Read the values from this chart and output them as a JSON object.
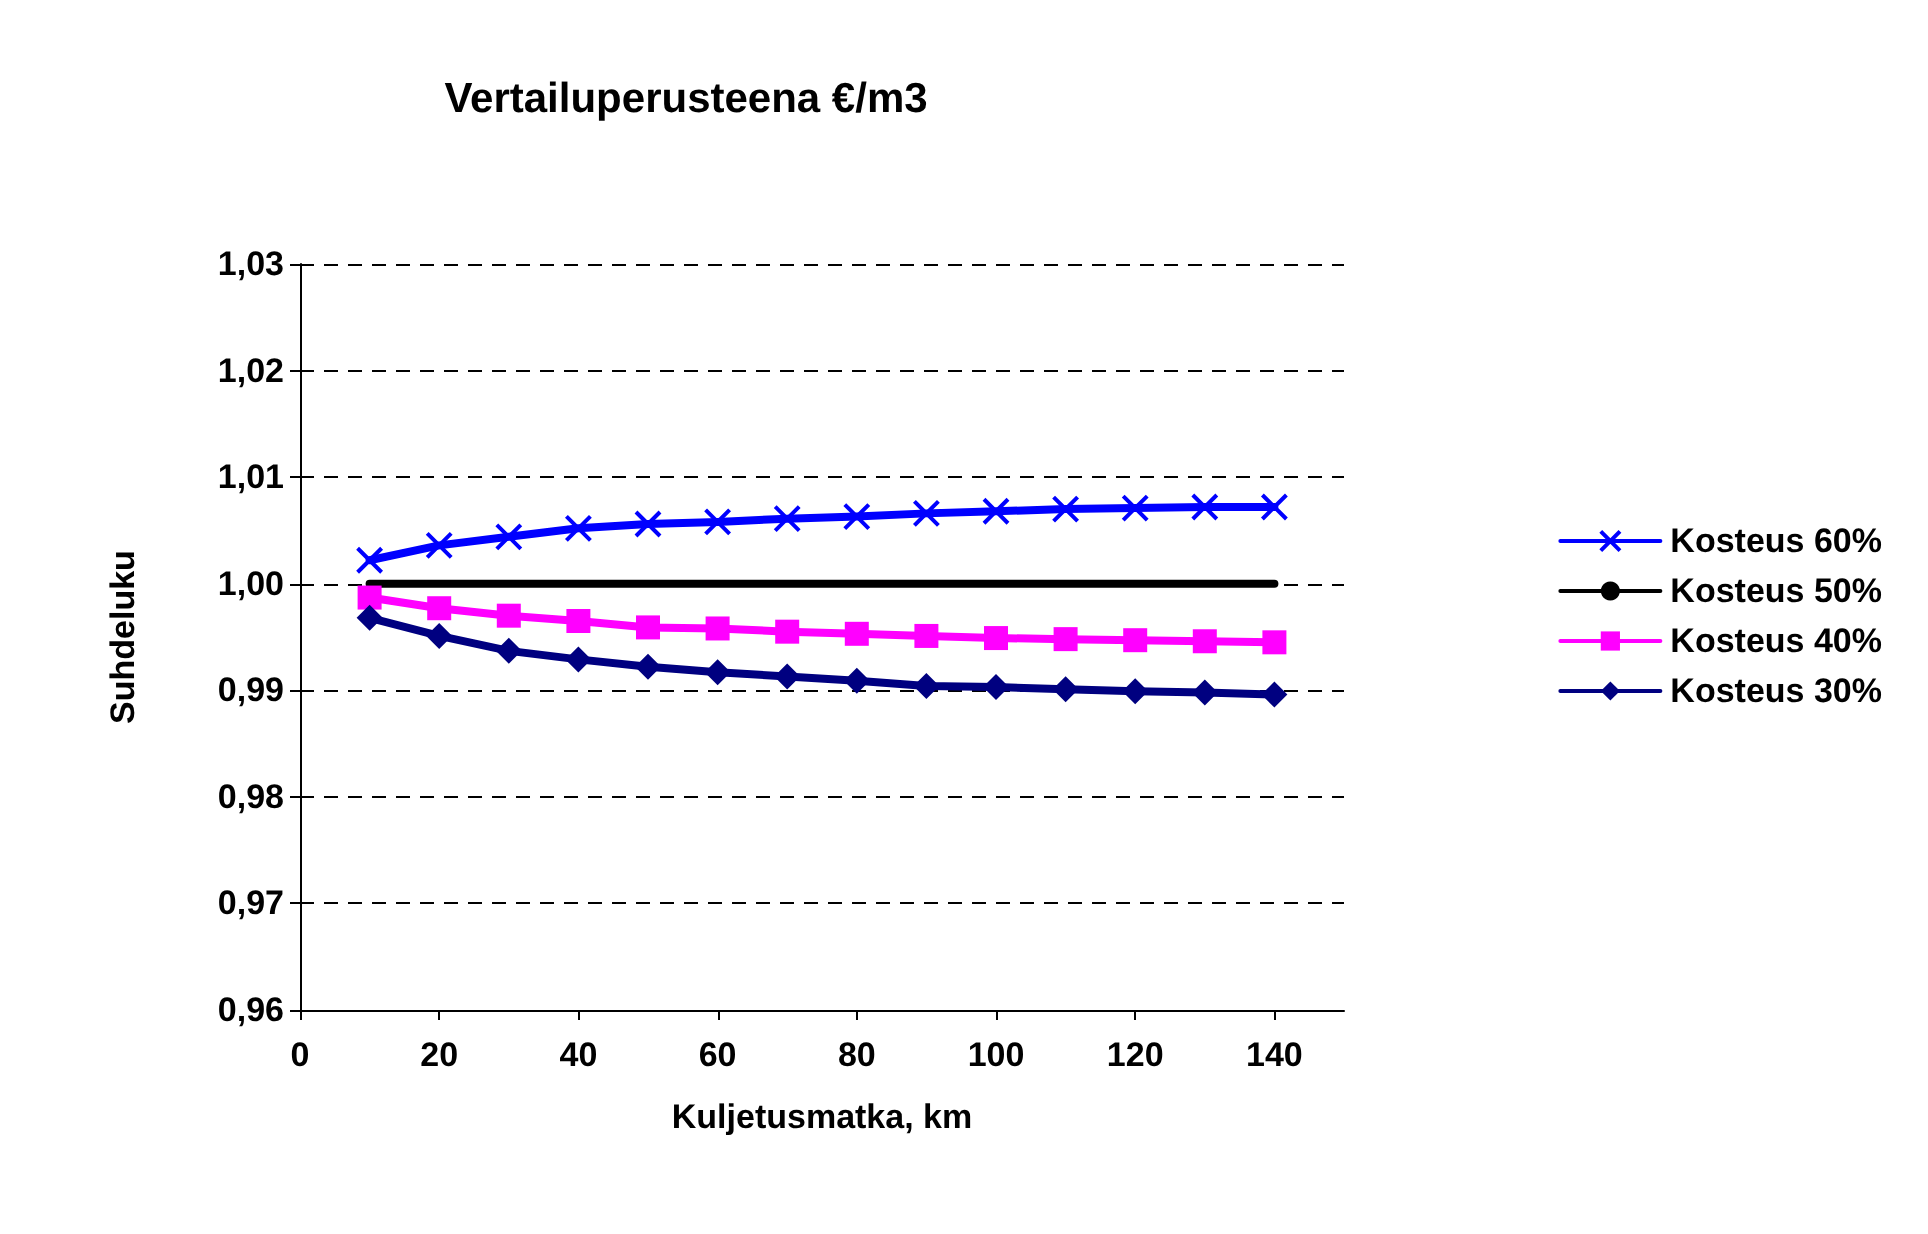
{
  "chart_data": {
    "type": "line",
    "title": "Vertailuperusteena €/m3",
    "xlabel": "Kuljetusmatka, km",
    "ylabel": "Suhdeluku",
    "x": [
      10,
      20,
      30,
      40,
      50,
      60,
      70,
      80,
      90,
      100,
      110,
      120,
      130,
      140
    ],
    "series": [
      {
        "name": "Kosteus 60%",
        "color": "#0000ff",
        "marker": "cross",
        "values": [
          1.0022,
          1.0036,
          1.0044,
          1.0052,
          1.0056,
          1.0058,
          1.0061,
          1.0063,
          1.0066,
          1.0068,
          1.007,
          1.0071,
          1.0072,
          1.0072
        ]
      },
      {
        "name": "Kosteus 50%",
        "color": "#000000",
        "marker": "none",
        "values": [
          1,
          1,
          1,
          1,
          1,
          1,
          1,
          1,
          1,
          1,
          1,
          1,
          1,
          1
        ]
      },
      {
        "name": "Kosteus 40%",
        "color": "#ff00ff",
        "marker": "square",
        "values": [
          0.9987,
          0.9977,
          0.997,
          0.9965,
          0.9959,
          0.9958,
          0.9955,
          0.9953,
          0.9951,
          0.9949,
          0.9948,
          0.9947,
          0.9946,
          0.9945
        ]
      },
      {
        "name": "Kosteus 30%",
        "color": "#000080",
        "marker": "diamond",
        "values": [
          0.9968,
          0.9951,
          0.9937,
          0.9929,
          0.9922,
          0.9917,
          0.9913,
          0.9909,
          0.9904,
          0.9903,
          0.9901,
          0.9899,
          0.9898,
          0.9896
        ]
      }
    ],
    "xlim": [
      0,
      150
    ],
    "xticks": [
      0,
      20,
      40,
      60,
      80,
      100,
      120,
      140
    ],
    "ylim": [
      0.96,
      1.03
    ],
    "yticks": [
      {
        "value": 0.96,
        "label": "0,96"
      },
      {
        "value": 0.97,
        "label": "0,97"
      },
      {
        "value": 0.98,
        "label": "0,98"
      },
      {
        "value": 0.99,
        "label": "0,99"
      },
      {
        "value": 1.0,
        "label": "1,00"
      },
      {
        "value": 1.01,
        "label": "1,01"
      },
      {
        "value": 1.02,
        "label": "1,02"
      },
      {
        "value": 1.03,
        "label": "1,03"
      }
    ],
    "grid": "y",
    "legend": "right",
    "line_style": "solid"
  }
}
